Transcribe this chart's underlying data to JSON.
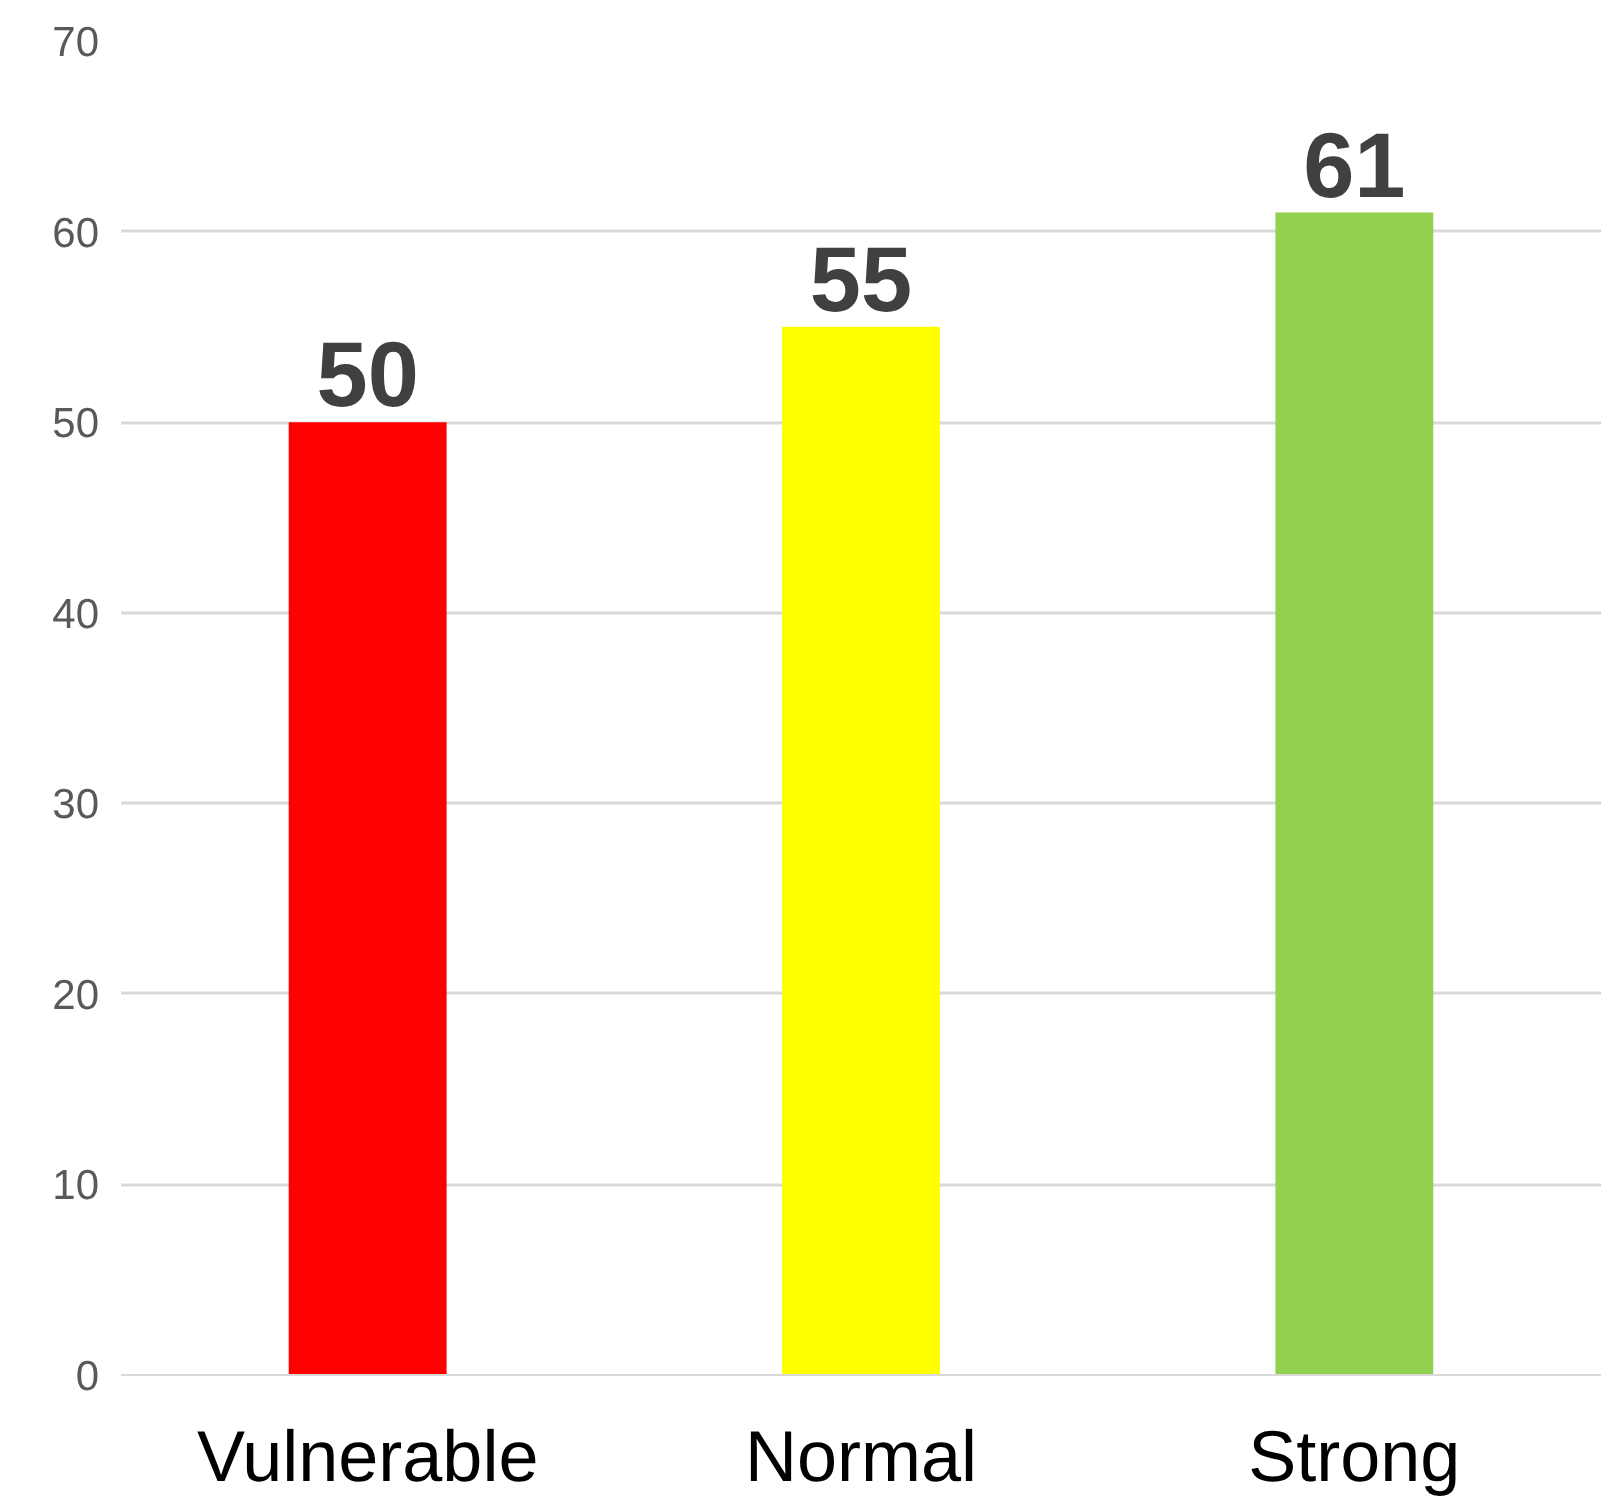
{
  "chart_data": {
    "type": "bar",
    "categories": [
      "Vulnerable",
      "Normal",
      "Strong"
    ],
    "values": [
      50,
      55,
      61
    ],
    "colors": [
      "#ff0000",
      "#ffff00",
      "#92d050"
    ],
    "ylim": [
      0,
      70
    ],
    "yticks": [
      0,
      10,
      20,
      30,
      40,
      50,
      60,
      70
    ],
    "grid": "y",
    "data_labels": true
  }
}
